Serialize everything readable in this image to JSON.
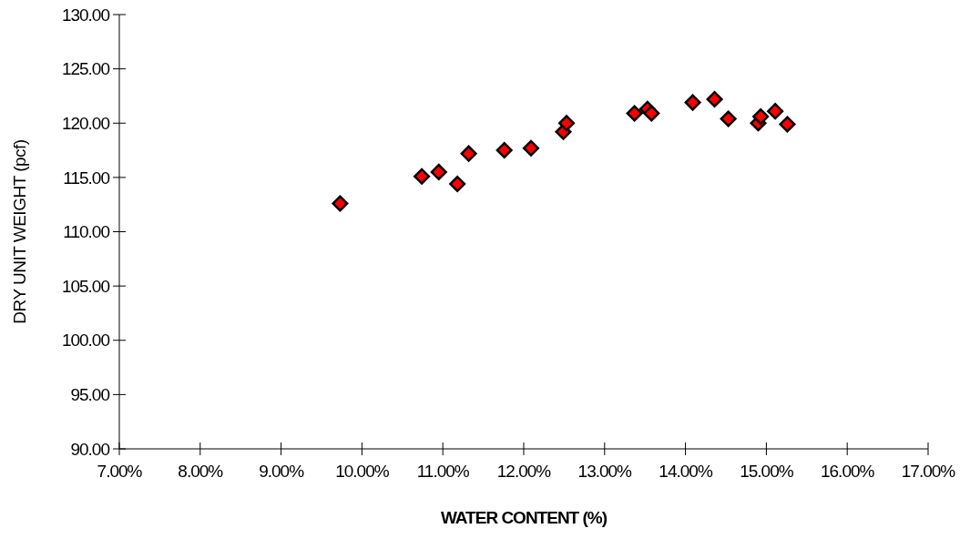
{
  "chart_data": {
    "type": "scatter",
    "xlabel": "WATER CONTENT (%)",
    "ylabel": "DRY UNIT WEIGHT (pcf)",
    "x": [
      9.73,
      10.74,
      10.95,
      11.18,
      11.32,
      11.76,
      12.09,
      12.49,
      12.53,
      13.37,
      13.53,
      13.58,
      14.09,
      14.36,
      14.53,
      14.9,
      14.93,
      15.11,
      15.26
    ],
    "series": [
      {
        "color": "#ff0000",
        "values": [
          112.6,
          115.1,
          115.5,
          114.4,
          117.2,
          117.5,
          117.7,
          119.2,
          120.0,
          120.9,
          121.3,
          120.9,
          121.9,
          122.2,
          120.4,
          120.0,
          120.6,
          121.1,
          119.9
        ]
      }
    ],
    "xlim": [
      7,
      17
    ],
    "ylim": [
      90,
      130
    ],
    "xticks": [
      {
        "value": 7,
        "label": "7.00%"
      },
      {
        "value": 8,
        "label": "8.00%"
      },
      {
        "value": 9,
        "label": "9.00%"
      },
      {
        "value": 10,
        "label": "10.00%"
      },
      {
        "value": 11,
        "label": "11.00%"
      },
      {
        "value": 12,
        "label": "12.00%"
      },
      {
        "value": 13,
        "label": "13.00%"
      },
      {
        "value": 14,
        "label": "14.00%"
      },
      {
        "value": 15,
        "label": "15.00%"
      },
      {
        "value": 16,
        "label": "16.00%"
      },
      {
        "value": 17,
        "label": "17.00%"
      }
    ],
    "yticks": [
      {
        "value": 90,
        "label": "90.00"
      },
      {
        "value": 95,
        "label": "95.00"
      },
      {
        "value": 100,
        "label": "100.00"
      },
      {
        "value": 105,
        "label": "105.00"
      },
      {
        "value": 110,
        "label": "110.00"
      },
      {
        "value": 115,
        "label": "115.00"
      },
      {
        "value": 120,
        "label": "120.00"
      },
      {
        "value": 125,
        "label": "125.00"
      },
      {
        "value": 130,
        "label": "130.00"
      }
    ],
    "marker": "diamond"
  }
}
